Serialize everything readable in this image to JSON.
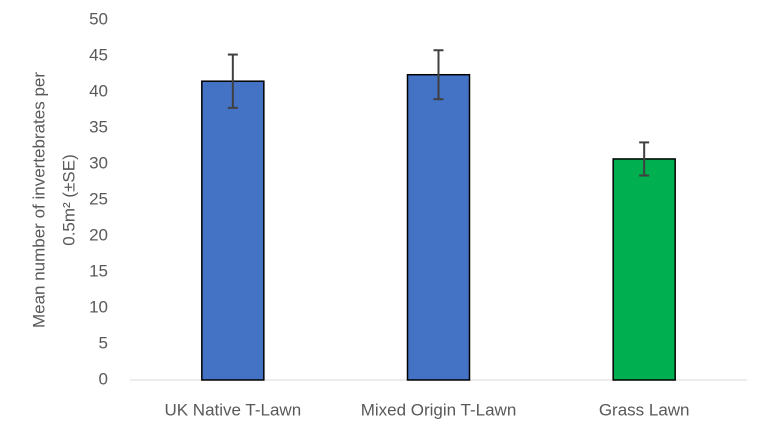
{
  "chart_data": {
    "type": "bar",
    "ylabel": [
      "Mean number of invertebrates per",
      "0.5m² (±SE)"
    ],
    "categories": [
      "UK Native T-Lawn",
      "Mixed Origin T-Lawn",
      "Grass Lawn"
    ],
    "values": [
      41.5,
      42.4,
      30.7
    ],
    "errors": [
      3.7,
      3.4,
      2.3
    ],
    "colors": [
      "#4472c4",
      "#4472c4",
      "#00b050"
    ],
    "ylim": [
      0,
      50
    ],
    "yticks": [
      0,
      5,
      10,
      15,
      20,
      25,
      30,
      35,
      40,
      45,
      50
    ],
    "grid": false
  }
}
